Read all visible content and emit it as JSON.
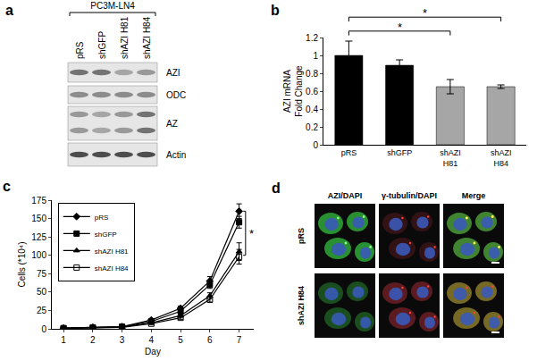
{
  "chart_data": [
    {
      "type": "bar",
      "title": "b",
      "categories": [
        "pRS",
        "shGFP",
        "shAZI H81",
        "shAZI H84"
      ],
      "values": [
        1.0,
        0.89,
        0.65,
        0.65
      ],
      "errors": [
        0.16,
        0.06,
        0.08,
        0.02
      ],
      "colors": [
        "#000000",
        "#000000",
        "#a6a6a6",
        "#a6a6a6"
      ],
      "y_label": [
        "AZI mRNA",
        "Fold Change"
      ],
      "ylim": [
        0,
        1.2
      ],
      "yticks": [
        0,
        0.2,
        0.4,
        0.6,
        0.8,
        1,
        1.2
      ],
      "annotations": [
        {
          "text": "*",
          "from": "pRS",
          "to": "shAZI H81"
        },
        {
          "text": "*",
          "from": "pRS",
          "to": "shAZI H84"
        }
      ],
      "grid": false
    },
    {
      "type": "line",
      "title": "c",
      "x": [
        1,
        2,
        3,
        4,
        5,
        6,
        7
      ],
      "series": [
        {
          "name": "pRS",
          "color": "#000000",
          "marker": "diamond",
          "values": [
            1,
            2,
            3,
            12,
            28,
            65,
            160
          ],
          "errors": [
            0,
            0,
            0.5,
            1,
            3,
            6,
            10
          ]
        },
        {
          "name": "shGFP",
          "color": "#000000",
          "marker": "square",
          "values": [
            1,
            2,
            3,
            10,
            24,
            60,
            145
          ],
          "errors": [
            0,
            0,
            0.5,
            1,
            3,
            5,
            8
          ]
        },
        {
          "name": "shAZI H81",
          "color": "#000000",
          "marker": "triangle-up",
          "values": [
            0.5,
            1.5,
            2.5,
            8,
            18,
            45,
            105
          ],
          "errors": [
            0,
            0,
            0.5,
            1,
            2,
            4,
            12
          ]
        },
        {
          "name": "shAZI H84",
          "color": "#000000",
          "marker": "square-open",
          "values": [
            0.5,
            1,
            2,
            7,
            15,
            40,
            98
          ],
          "errors": [
            0,
            0,
            0.5,
            1,
            2,
            4,
            10
          ]
        }
      ],
      "x_label": "Day",
      "y_label": "Cells (*10⁴)",
      "xlim": [
        0.6,
        7.5
      ],
      "xticks": [
        1,
        2,
        3,
        4,
        5,
        6,
        7
      ],
      "ylim": [
        0,
        175
      ],
      "yticks": [
        0,
        25,
        50,
        75,
        100,
        125,
        150,
        175
      ],
      "legend": "top left",
      "annotations": [
        {
          "text": "*",
          "x": 7,
          "from": 100,
          "to": 160
        }
      ],
      "grid": false
    }
  ],
  "blot_panel": {
    "label": "a",
    "cell_line": "PC3M-LN4",
    "lanes": [
      "pRS",
      "shGFP",
      "shAZI H81",
      "shAZI H84"
    ],
    "bands": [
      "AZI",
      "ODC",
      "AZ",
      "Actin"
    ]
  },
  "image_panel": {
    "label": "d",
    "columns": [
      "AZI/DAPI",
      "γ-tubulin/DAPI",
      "Merge"
    ],
    "rows": [
      "pRS",
      "shAZI H84"
    ]
  }
}
